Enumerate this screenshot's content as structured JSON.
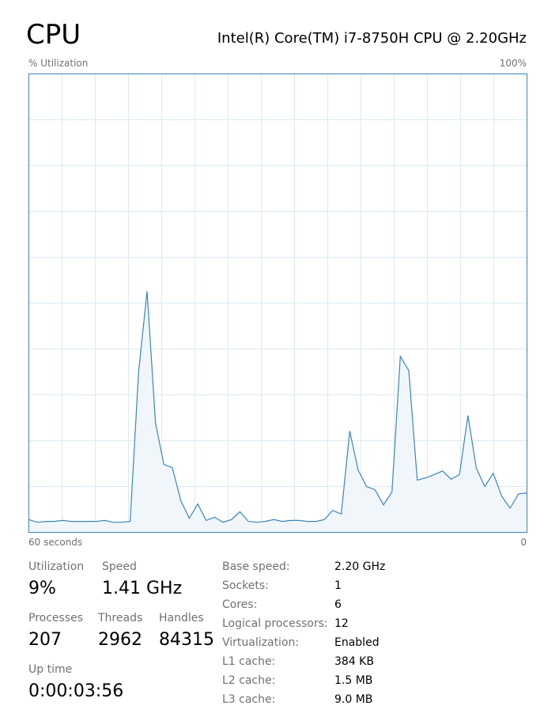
{
  "header": {
    "title": "CPU",
    "processor": "Intel(R) Core(TM) i7-8750H CPU @ 2.20GHz"
  },
  "chart_data": {
    "type": "line",
    "y_label": "% Utilization",
    "y_max_label": "100%",
    "x_left_label": "60 seconds",
    "x_right_label": "0",
    "ylim": [
      0,
      100
    ],
    "color": "#3a86b8",
    "fill": "#f1f6fb",
    "grid_color": "#d9eaf4",
    "values": [
      2.8,
      2.2,
      2.4,
      2.4,
      2.6,
      2.4,
      2.4,
      2.4,
      2.4,
      2.6,
      2.2,
      2.2,
      2.4,
      35,
      52.6,
      23.8,
      14.8,
      14.1,
      6.9,
      3.1,
      6.2,
      2.6,
      3.3,
      2.2,
      2.8,
      4.5,
      2.4,
      2.2,
      2.4,
      2.8,
      2.4,
      2.6,
      2.6,
      2.4,
      2.4,
      2.8,
      4.8,
      4.0,
      22.1,
      13.6,
      10,
      9.3,
      6.0,
      8.8,
      38.4,
      35.3,
      11.4,
      11.9,
      12.6,
      13.4,
      11.6,
      12.6,
      25.5,
      14.0,
      10,
      12.9,
      7.9,
      5.3,
      8.4,
      8.6
    ]
  },
  "stats": {
    "utilization": {
      "label": "Utilization",
      "value": "9%"
    },
    "speed": {
      "label": "Speed",
      "value": "1.41 GHz"
    },
    "processes": {
      "label": "Processes",
      "value": "207"
    },
    "threads": {
      "label": "Threads",
      "value": "2962"
    },
    "handles": {
      "label": "Handles",
      "value": "84315"
    },
    "uptime": {
      "label": "Up time",
      "value": "0:00:03:56"
    }
  },
  "specs": [
    {
      "label": "Base speed:",
      "value": "2.20 GHz"
    },
    {
      "label": "Sockets:",
      "value": "1"
    },
    {
      "label": "Cores:",
      "value": "6"
    },
    {
      "label": "Logical processors:",
      "value": "12"
    },
    {
      "label": "Virtualization:",
      "value": "Enabled"
    },
    {
      "label": "L1 cache:",
      "value": "384 KB"
    },
    {
      "label": "L2 cache:",
      "value": "1.5 MB"
    },
    {
      "label": "L3 cache:",
      "value": "9.0 MB"
    }
  ]
}
